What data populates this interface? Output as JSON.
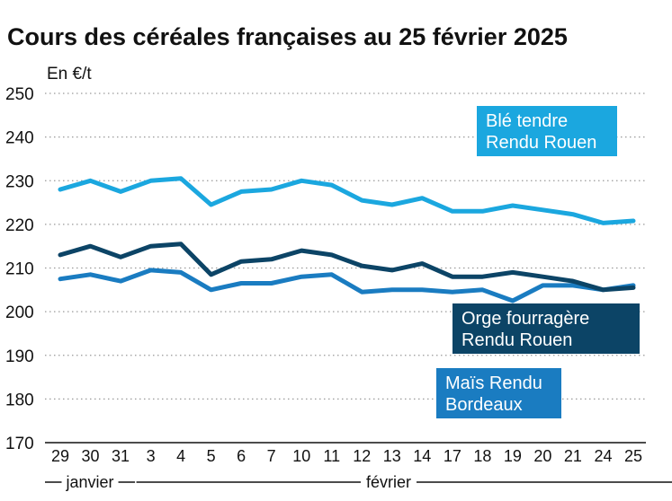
{
  "chart_data": {
    "type": "line",
    "title": "Cours des céréales françaises au 25 février 2025",
    "ylabel": "En €/t",
    "ylim": [
      170,
      250
    ],
    "yticks": [
      170,
      180,
      190,
      200,
      210,
      220,
      230,
      240,
      250
    ],
    "categories": [
      "29",
      "30",
      "31",
      "3",
      "4",
      "5",
      "6",
      "7",
      "10",
      "11",
      "12",
      "13",
      "14",
      "17",
      "18",
      "19",
      "20",
      "21",
      "24",
      "25"
    ],
    "month_labels": [
      {
        "text": "janvier"
      },
      {
        "text": "février"
      }
    ],
    "series": [
      {
        "name": "Blé tendre Rendu Rouen",
        "label_lines": [
          "Blé tendre",
          "Rendu Rouen"
        ],
        "color": "#1ba7df",
        "values": [
          228,
          230,
          227.5,
          230,
          230.5,
          224.5,
          227.5,
          228,
          230,
          229,
          225.5,
          224.5,
          226,
          223,
          223,
          224.3,
          223.3,
          222.3,
          220.3,
          220.8
        ]
      },
      {
        "name": "Orge fourragère Rendu Rouen",
        "label_lines": [
          "Orge fourragère",
          "Rendu Rouen"
        ],
        "color": "#0c4466",
        "values": [
          213,
          215,
          212.5,
          215,
          215.5,
          208.5,
          211.5,
          212,
          214,
          213,
          210.5,
          209.5,
          211,
          208,
          208,
          209,
          208,
          207,
          205,
          205.5
        ]
      },
      {
        "name": "Maïs Rendu Bordeaux",
        "label_lines": [
          "Maïs Rendu",
          "Bordeaux"
        ],
        "color": "#1a7cc1",
        "values": [
          207.5,
          208.5,
          207,
          209.5,
          209,
          205,
          206.5,
          206.5,
          208,
          208.5,
          204.5,
          205,
          205,
          204.5,
          205,
          202.5,
          206,
          206,
          205,
          206
        ]
      }
    ]
  }
}
